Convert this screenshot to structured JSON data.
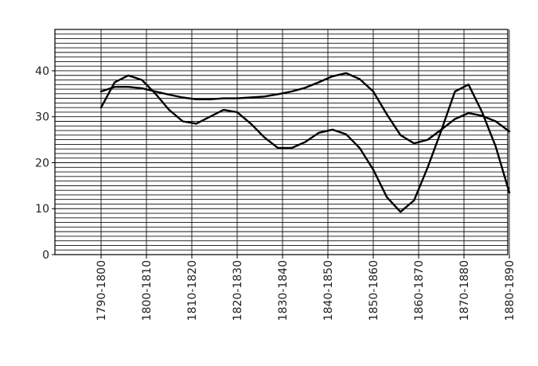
{
  "chart_data": {
    "type": "line",
    "title": "",
    "xlabel": "",
    "ylabel": "",
    "ylim": [
      0,
      49
    ],
    "y_ticks": [
      0,
      10,
      20,
      30,
      40
    ],
    "grid": "horizontal minor lines every 1 unit; vertical lines at each category",
    "categories": [
      "1790-1800",
      "1800-1810",
      "1810-1820",
      "1820-1830",
      "1830-1840",
      "1840-1850",
      "1850-1860",
      "1860-1870",
      "1870-1880",
      "1880-1890"
    ],
    "series": [
      {
        "x": [
          0,
          0.3,
          0.6,
          0.9,
          1.2,
          1.5,
          1.8,
          2.1,
          2.4,
          2.7,
          3.0,
          3.3,
          3.6,
          3.9,
          4.2,
          4.5,
          4.8,
          5.1,
          5.4,
          5.7,
          6.0,
          6.3,
          6.6,
          6.9,
          7.2,
          7.5,
          7.8,
          8.1,
          8.4,
          8.7,
          9.0
        ],
        "values": [
          32,
          37.5,
          39,
          38,
          35,
          31.5,
          29,
          28.5,
          30,
          31.5,
          31,
          28.5,
          25.5,
          23.2,
          23.2,
          24.5,
          26.5,
          27.2,
          26.2,
          23.2,
          18.5,
          12.5,
          9.3,
          11.8,
          19,
          27,
          35.5,
          37,
          31,
          23.5,
          13.5
        ]
      },
      {
        "x": [
          0,
          0.3,
          0.6,
          0.9,
          1.2,
          1.5,
          1.8,
          2.1,
          2.4,
          2.7,
          3.0,
          3.3,
          3.6,
          3.9,
          4.2,
          4.5,
          4.8,
          5.1,
          5.4,
          5.7,
          6.0,
          6.3,
          6.6,
          6.9,
          7.2,
          7.5,
          7.8,
          8.1,
          8.4,
          8.7,
          9.0
        ],
        "values": [
          35.5,
          36.5,
          36.5,
          36.2,
          35.5,
          34.8,
          34.2,
          33.8,
          33.8,
          34,
          34,
          34.2,
          34.4,
          34.9,
          35.5,
          36.3,
          37.5,
          38.8,
          39.5,
          38.2,
          35.5,
          30.5,
          26,
          24.2,
          25,
          27.2,
          29.5,
          30.8,
          30.2,
          29,
          26.8
        ]
      }
    ]
  }
}
